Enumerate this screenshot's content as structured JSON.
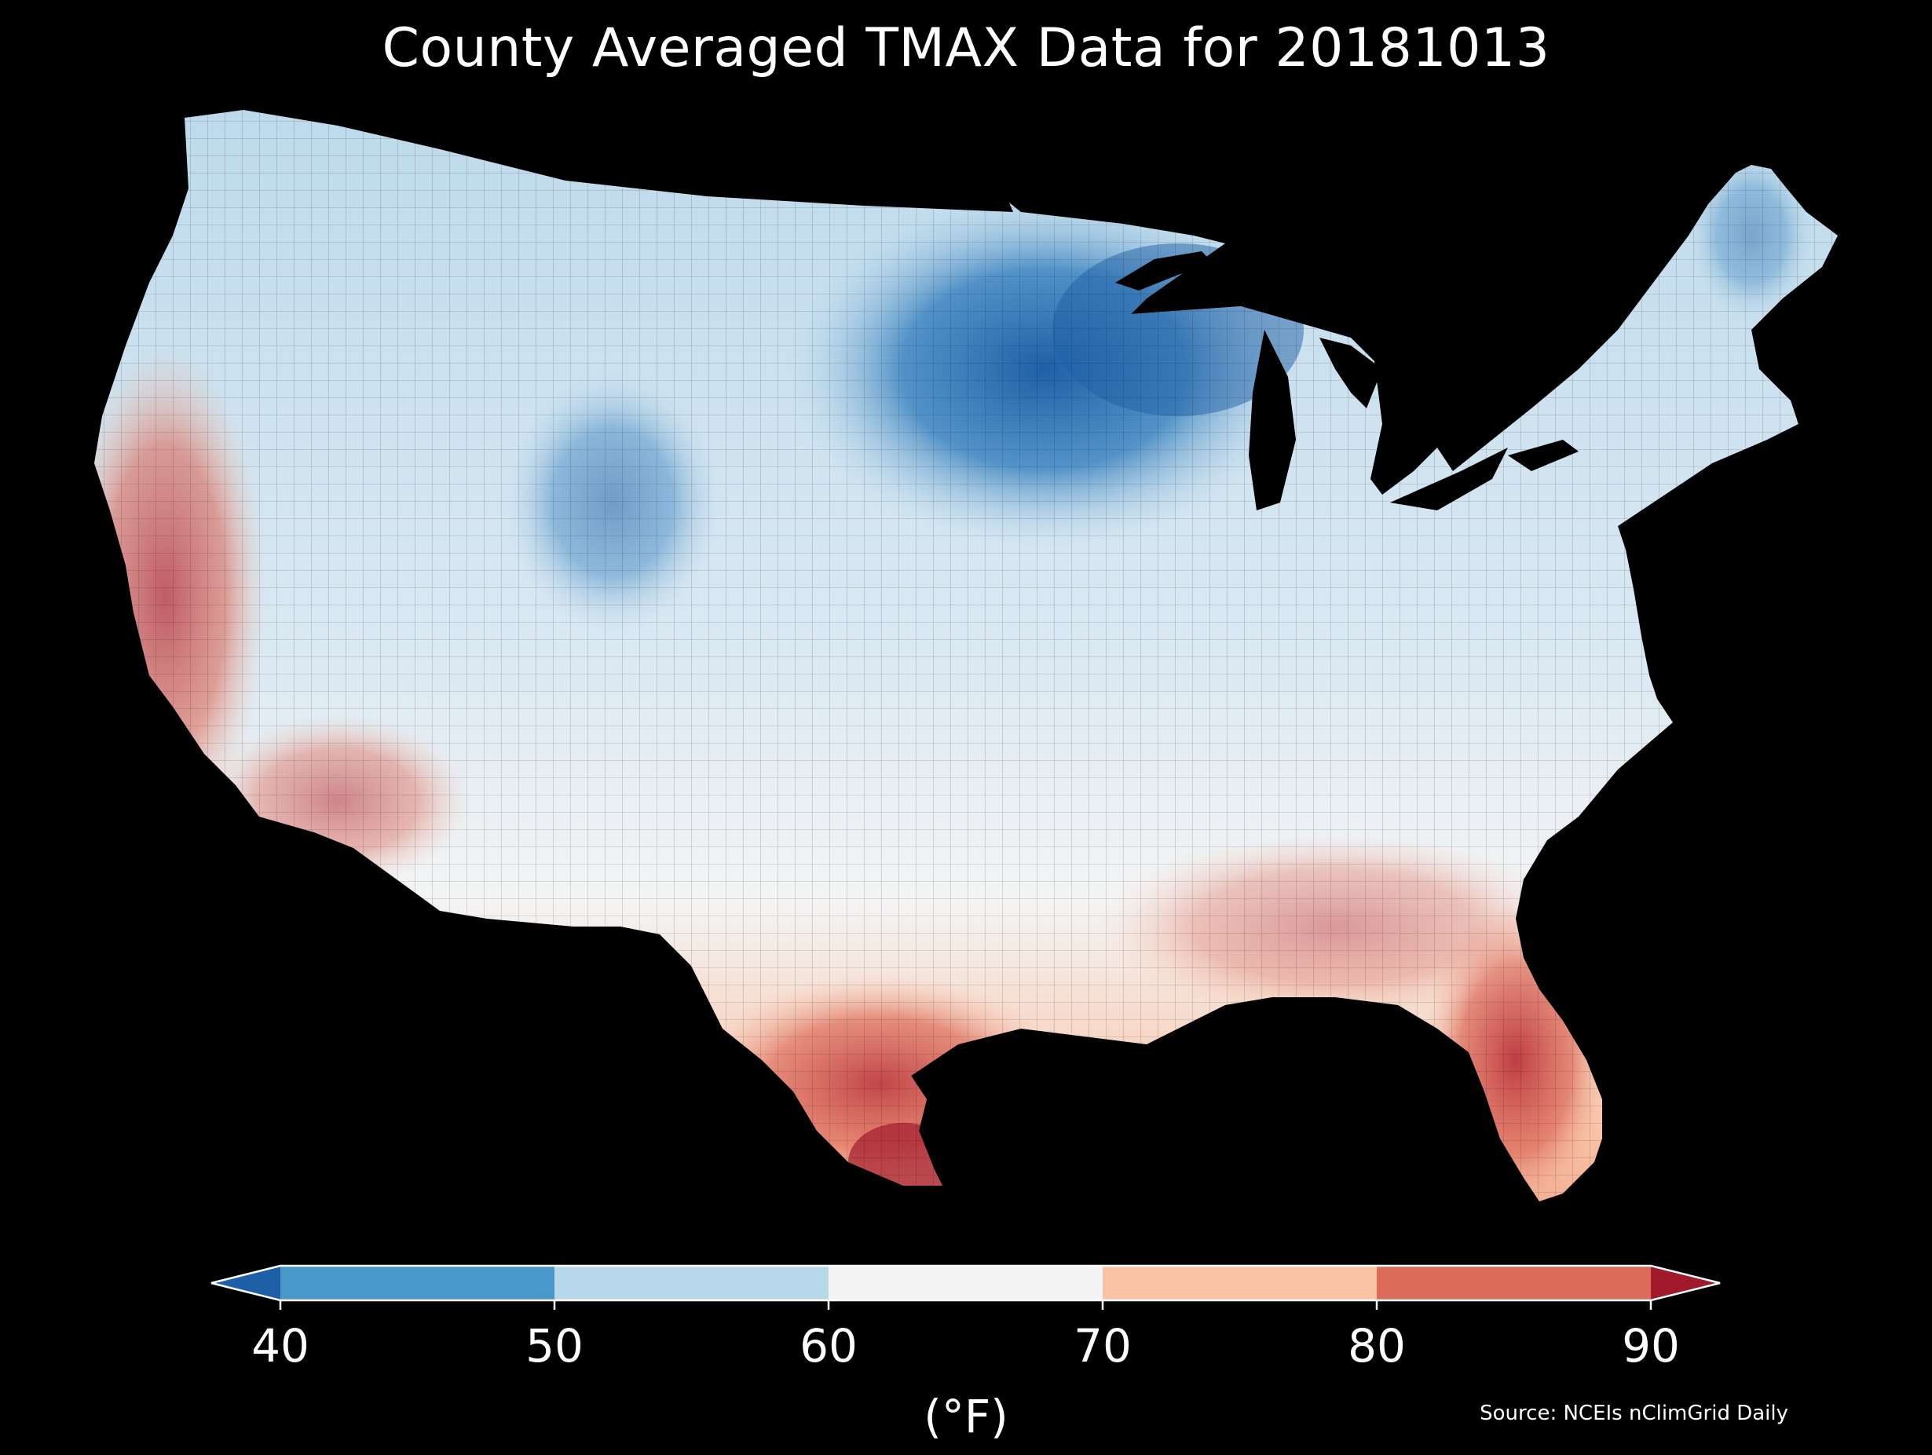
{
  "title": "County Averaged TMAX Data for 20181013",
  "units_label": "(°F)",
  "source": "Source: NCEIs nClimGrid Daily",
  "colorbar": {
    "ticks": [
      "40",
      "50",
      "60",
      "70",
      "80",
      "90"
    ],
    "min": 40,
    "max": 90,
    "bins": [
      {
        "from": 40,
        "to": 50,
        "color": "#4a97c9"
      },
      {
        "from": 50,
        "to": 60,
        "color": "#b7d7ea"
      },
      {
        "from": 60,
        "to": 70,
        "color": "#f4f4f4"
      },
      {
        "from": 70,
        "to": 80,
        "color": "#f9c3a6"
      },
      {
        "from": 80,
        "to": 90,
        "color": "#dd6b5a"
      }
    ],
    "under_color": "#1f5fa6",
    "over_color": "#a11a2c",
    "extend": "both"
  },
  "map": {
    "region": "Contiguous United States",
    "unit": "county",
    "background": "#000000",
    "boundary_color": "#000000"
  }
}
